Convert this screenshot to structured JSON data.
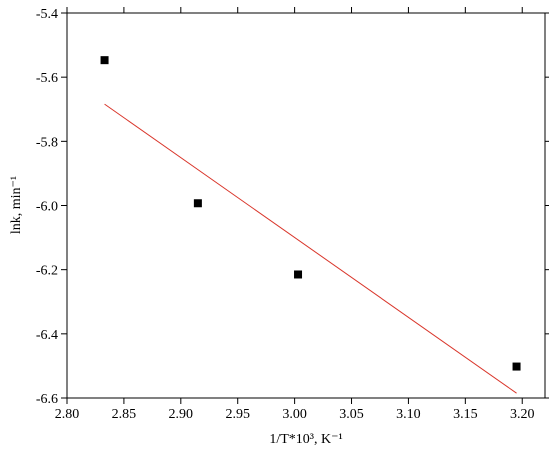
{
  "chart_data": {
    "type": "scatter",
    "xlabel": "1/T*10³, K⁻¹",
    "ylabel": "lnk, min⁻¹",
    "xlim": [
      2.8,
      3.22
    ],
    "ylim": [
      -6.6,
      -5.4
    ],
    "xticks": [
      {
        "value": 2.8,
        "label": "2.80"
      },
      2.85,
      {
        "value": 2.9,
        "label": "2.90"
      },
      2.95,
      {
        "value": 3.0,
        "label": "3.00"
      },
      3.05,
      {
        "value": 3.1,
        "label": "3.10"
      },
      3.15,
      {
        "value": 3.2,
        "label": "3.20"
      }
    ],
    "yticks": [
      -5.4,
      -5.6,
      -5.8,
      {
        "value": -6.0,
        "label": "-6.0"
      },
      -6.2,
      -6.4,
      -6.6
    ],
    "series": [
      {
        "type": "scatter",
        "marker": "square",
        "color": "#000000",
        "x": [
          2.833,
          2.915,
          3.003,
          3.195
        ],
        "values": [
          -5.547,
          -5.993,
          -6.215,
          -6.502
        ]
      },
      {
        "type": "line",
        "color": "#d9352a",
        "x": [
          2.833,
          3.195
        ],
        "values": [
          -5.684,
          -6.585
        ]
      }
    ]
  }
}
